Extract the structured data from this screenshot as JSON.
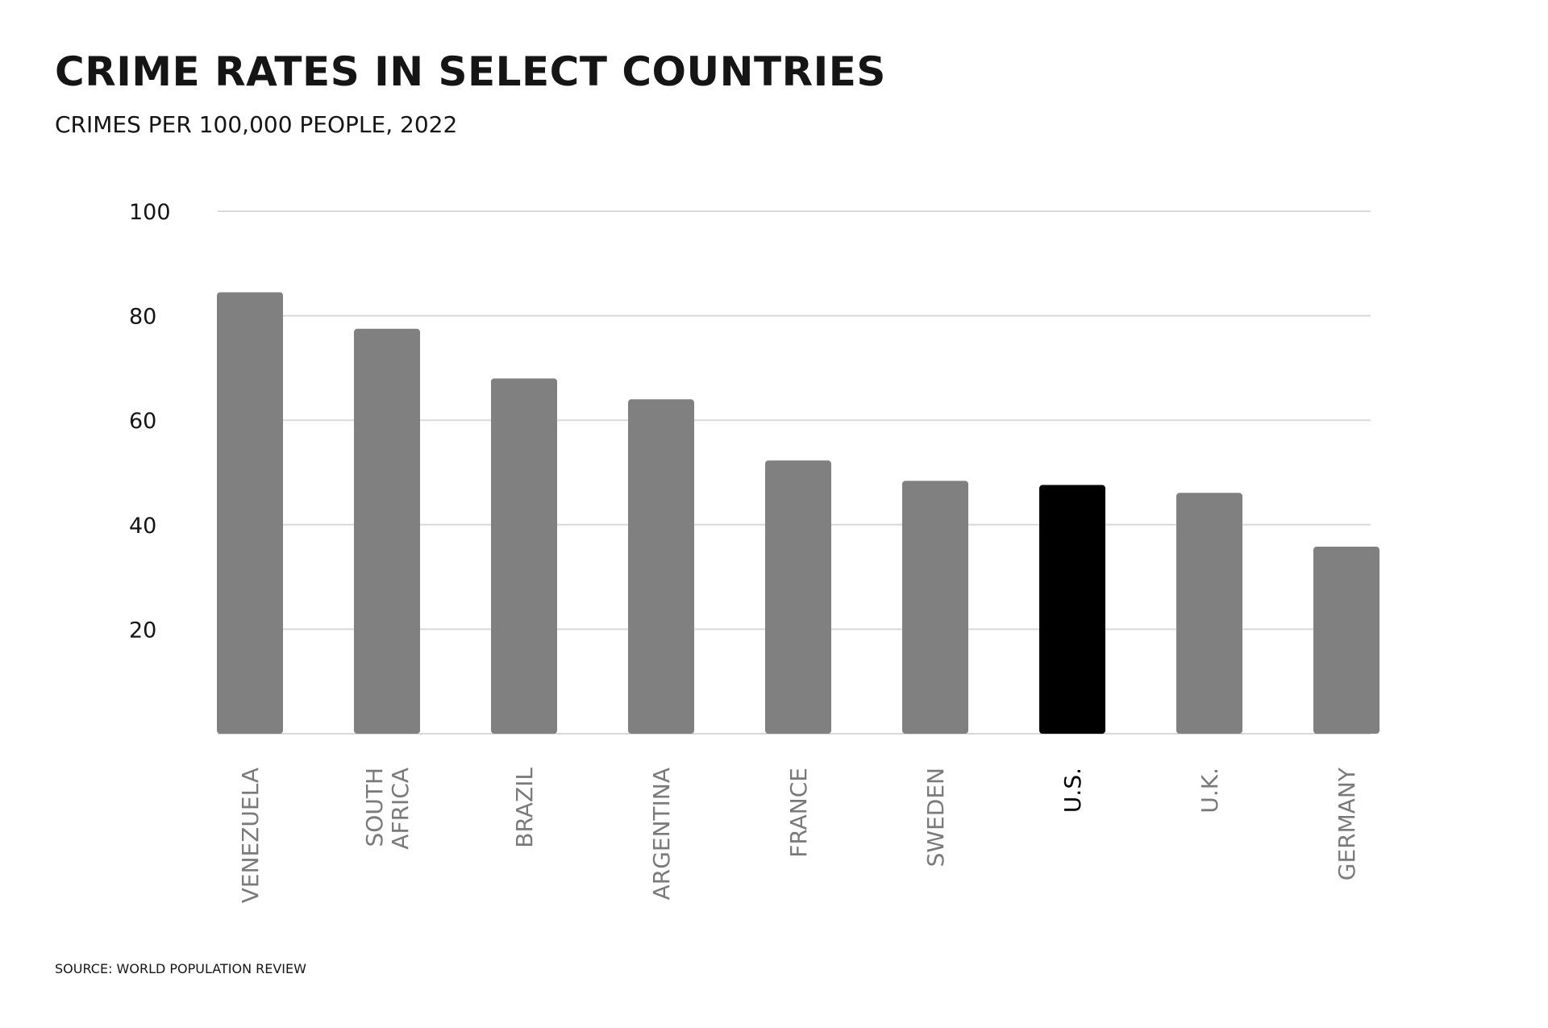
{
  "header": {
    "title": "CRIME RATES IN SELECT COUNTRIES",
    "subtitle": "CRIMES PER 100,000 PEOPLE, 2022"
  },
  "footer": {
    "source": "SOURCE: WORLD POPULATION REVIEW"
  },
  "colors": {
    "bar": "#808080",
    "highlight": "#000000",
    "grid": "#d9d9d9",
    "label": "#7a7a7a",
    "highlight_label": "#000000"
  },
  "chart_data": {
    "type": "bar",
    "title": "CRIME RATES IN SELECT COUNTRIES",
    "subtitle": "CRIMES PER 100,000 PEOPLE, 2022",
    "categories": [
      [
        "VENEZUELA"
      ],
      [
        "SOUTH",
        "AFRICA"
      ],
      [
        "BRAZIL"
      ],
      [
        "ARGENTINA"
      ],
      [
        "FRANCE"
      ],
      [
        "SWEDEN"
      ],
      [
        "U.S."
      ],
      [
        "U.K."
      ],
      [
        "GERMANY"
      ]
    ],
    "values": [
      84.5,
      77.5,
      68,
      64,
      52.3,
      48.4,
      47.6,
      46.1,
      35.8
    ],
    "highlight_index": 6,
    "ylim": [
      0,
      100
    ],
    "yticks": [
      20,
      40,
      60,
      80,
      100
    ],
    "grid": true,
    "xlabel": "",
    "ylabel": ""
  }
}
